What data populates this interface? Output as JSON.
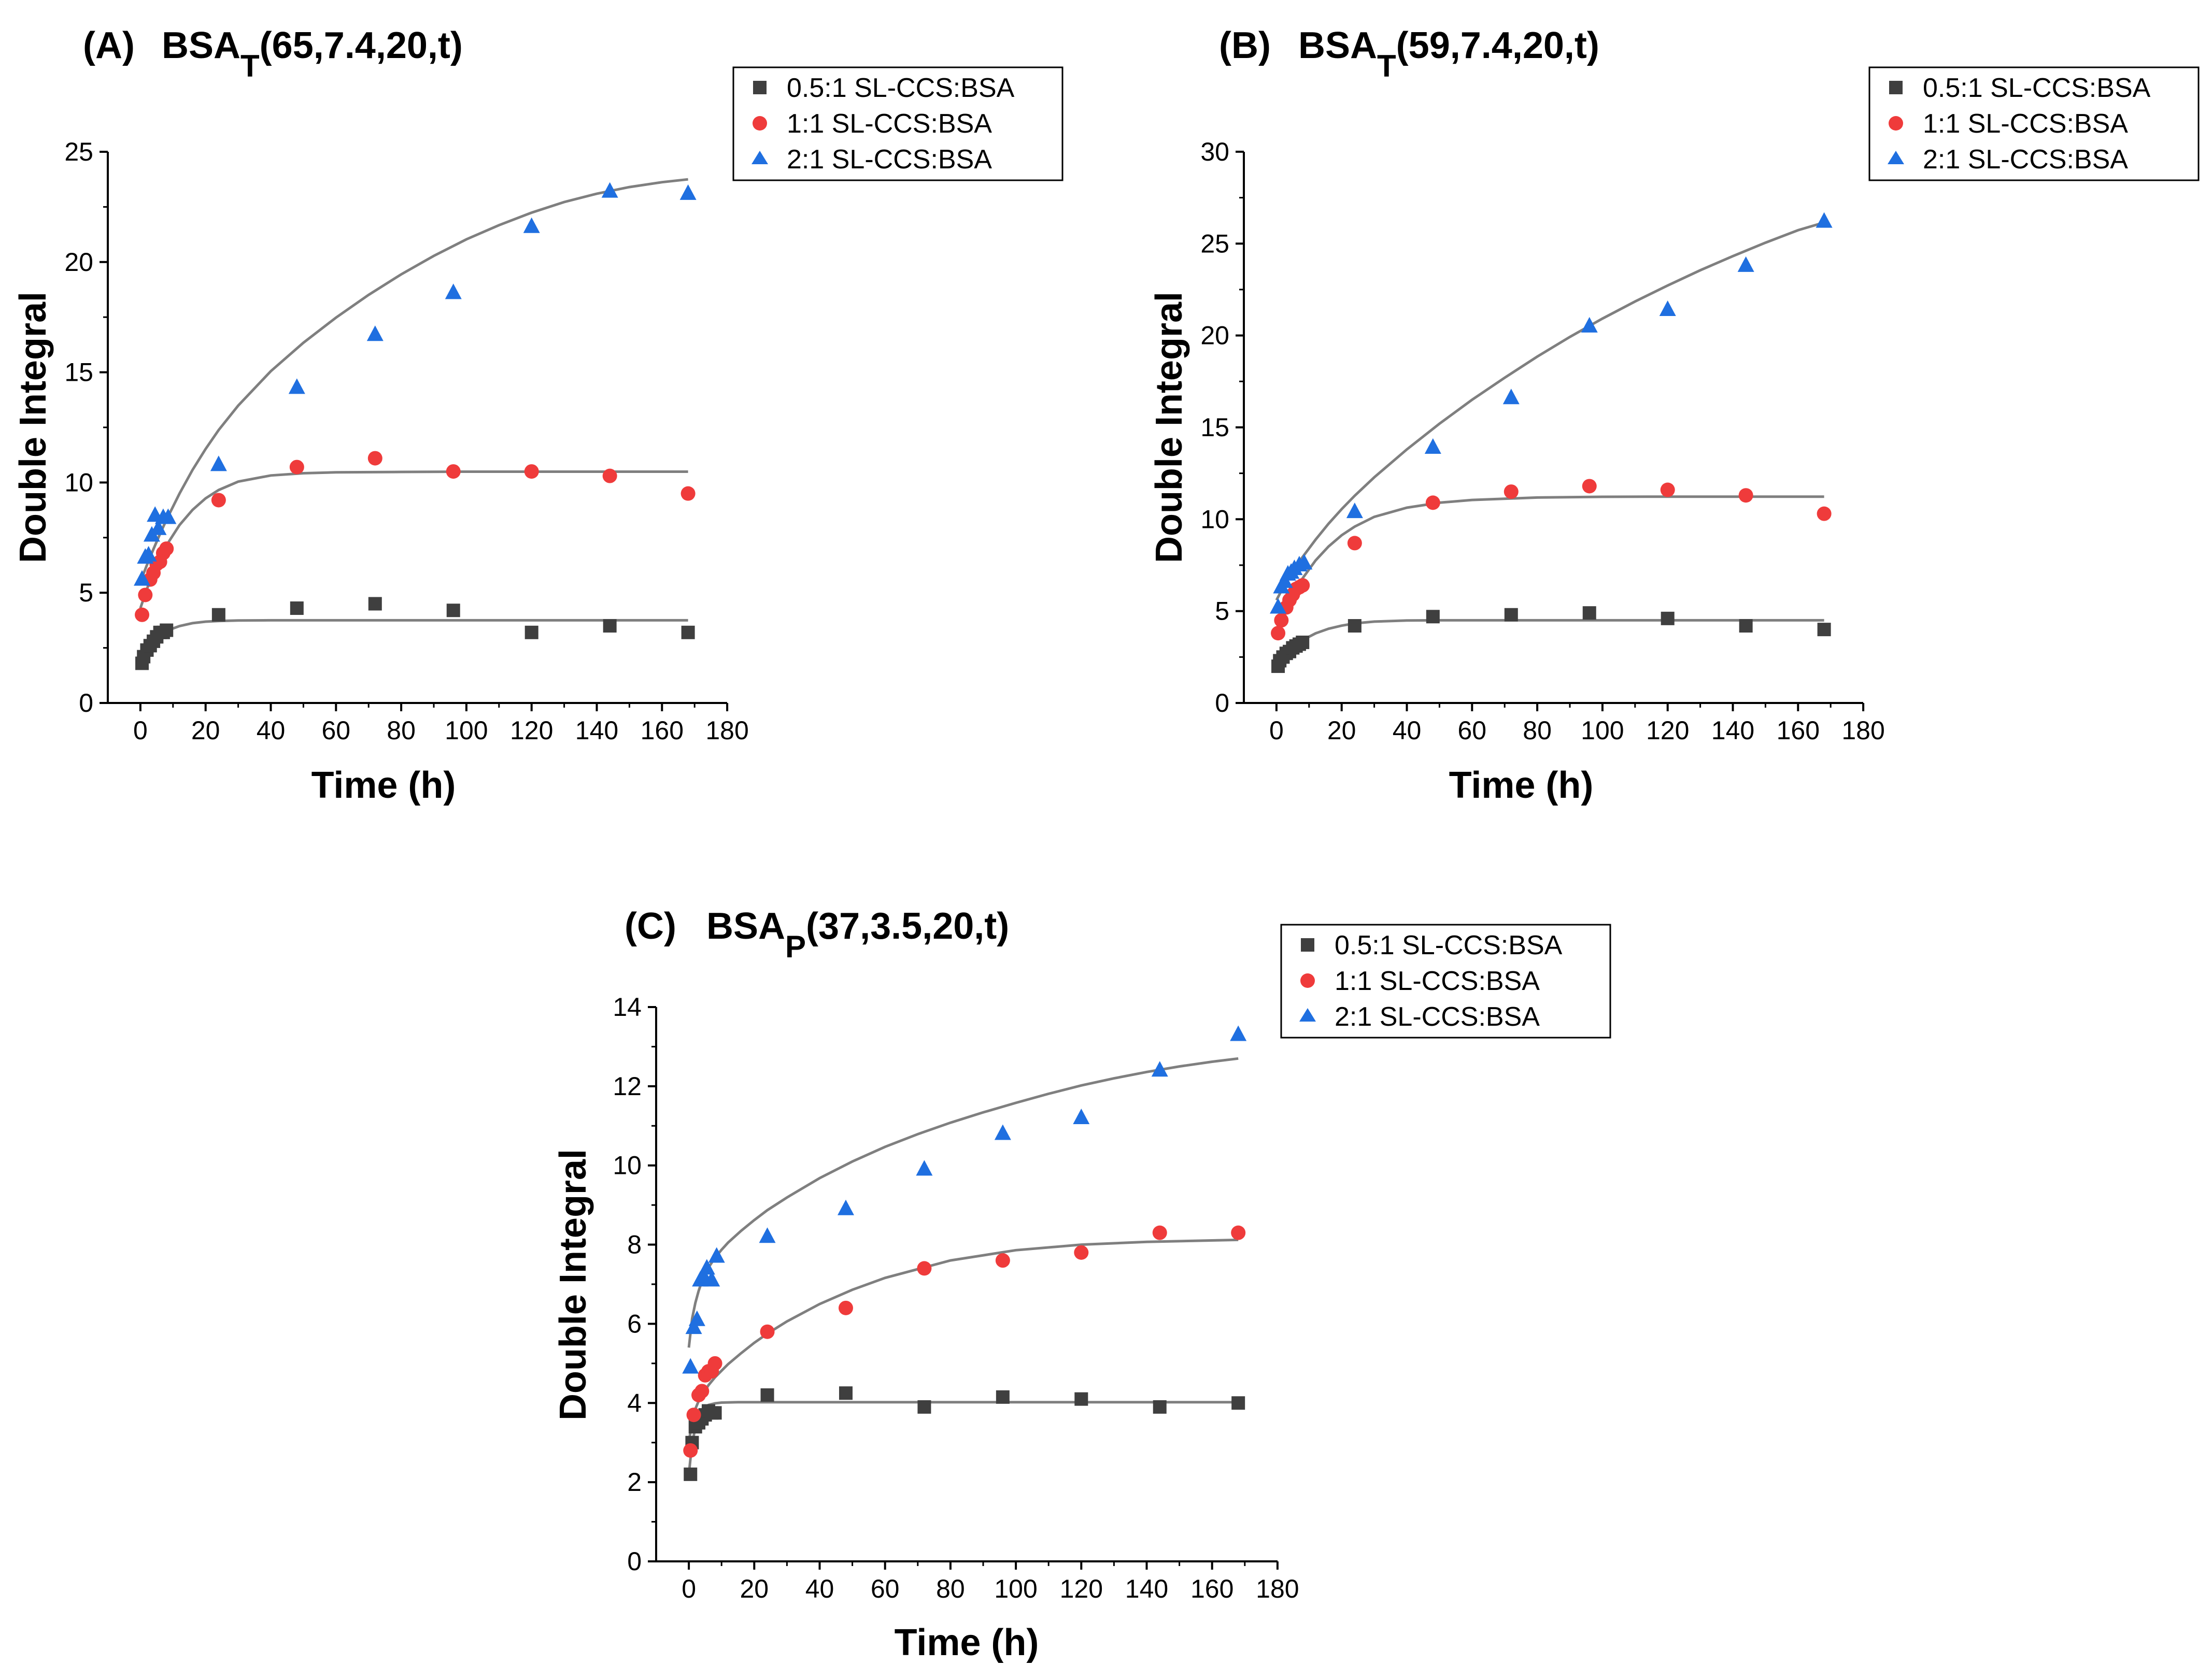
{
  "chart_data": [
    {
      "type": "scatter",
      "panel_label": "(A)",
      "title_main": "BSA",
      "title_sub": "T",
      "title_rest": "(65,7.4,20,t)",
      "xlabel": "Time (h)",
      "ylabel": "Double Integral",
      "xlim": [
        -10,
        180
      ],
      "ylim": [
        0,
        25
      ],
      "xticks": [
        0,
        20,
        40,
        60,
        80,
        100,
        120,
        140,
        160,
        180
      ],
      "yticks": [
        0,
        5,
        10,
        15,
        20,
        25
      ],
      "grid": false,
      "legend_position": "top-right",
      "series": [
        {
          "name": "0.5:1 SL-CCS:BSA",
          "marker": "square",
          "color": "#3f3f3f",
          "x": [
            0.5,
            1,
            2,
            3,
            4,
            5,
            6,
            7,
            8,
            24,
            48,
            72,
            96,
            120,
            144,
            168
          ],
          "y": [
            1.8,
            2.1,
            2.4,
            2.6,
            2.8,
            3.0,
            3.2,
            3.2,
            3.3,
            4.0,
            4.3,
            4.5,
            4.2,
            3.2,
            3.5,
            3.2
          ],
          "fit_x": [
            0,
            1,
            2,
            3,
            4,
            6,
            8,
            10,
            12,
            16,
            20,
            24,
            30,
            40,
            60,
            80,
            100,
            120,
            140,
            168
          ],
          "fit_y": [
            1.85,
            2.12,
            2.36,
            2.57,
            2.75,
            3.03,
            3.23,
            3.38,
            3.49,
            3.62,
            3.69,
            3.72,
            3.74,
            3.75,
            3.75,
            3.75,
            3.75,
            3.75,
            3.75,
            3.75
          ]
        },
        {
          "name": "1:1 SL-CCS:BSA",
          "marker": "circle",
          "color": "#ef3b3b",
          "x": [
            0.5,
            1.5,
            3,
            4,
            5,
            6,
            7,
            8,
            24,
            48,
            72,
            96,
            120,
            144,
            168
          ],
          "y": [
            4.0,
            4.9,
            5.6,
            5.9,
            6.3,
            6.4,
            6.8,
            7.0,
            9.2,
            10.7,
            11.1,
            10.5,
            10.5,
            10.3,
            9.5
          ],
          "fit_x": [
            0,
            2,
            4,
            6,
            8,
            12,
            16,
            20,
            24,
            30,
            40,
            50,
            60,
            80,
            100,
            120,
            140,
            168
          ],
          "fit_y": [
            4.3,
            5.17,
            5.93,
            6.58,
            7.15,
            8.07,
            8.76,
            9.28,
            9.66,
            10.04,
            10.32,
            10.42,
            10.46,
            10.48,
            10.49,
            10.49,
            10.49,
            10.49
          ]
        },
        {
          "name": "2:1 SL-CCS:BSA",
          "marker": "triangle",
          "color": "#1f6fe0",
          "x": [
            0.5,
            1.5,
            2.5,
            3.5,
            4.5,
            5.5,
            7,
            8.5,
            24,
            48,
            72,
            96,
            120,
            144,
            168
          ],
          "y": [
            5.6,
            6.6,
            6.7,
            7.6,
            8.5,
            7.9,
            8.4,
            8.4,
            10.8,
            14.3,
            16.7,
            18.6,
            21.6,
            23.2,
            23.1
          ],
          "fit_x": [
            0,
            2,
            4,
            6,
            8,
            12,
            16,
            20,
            24,
            30,
            40,
            50,
            60,
            70,
            80,
            90,
            100,
            110,
            120,
            130,
            140,
            150,
            160,
            168
          ],
          "fit_y": [
            5.5,
            6.26,
            6.98,
            7.66,
            8.31,
            9.5,
            10.57,
            11.52,
            12.38,
            13.49,
            15.05,
            16.34,
            17.48,
            18.51,
            19.44,
            20.28,
            21.03,
            21.67,
            22.24,
            22.72,
            23.1,
            23.4,
            23.62,
            23.75
          ]
        }
      ]
    },
    {
      "type": "scatter",
      "panel_label": "(B)",
      "title_main": "BSA",
      "title_sub": "T",
      "title_rest": "(59,7.4,20,t)",
      "xlabel": "Time (h)",
      "ylabel": "Double Integral",
      "xlim": [
        -10,
        180
      ],
      "ylim": [
        0,
        30
      ],
      "xticks": [
        0,
        20,
        40,
        60,
        80,
        100,
        120,
        140,
        160,
        180
      ],
      "yticks": [
        0,
        5,
        10,
        15,
        20,
        25,
        30
      ],
      "grid": false,
      "legend_position": "top-right",
      "series": [
        {
          "name": "0.5:1 SL-CCS:BSA",
          "marker": "square",
          "color": "#3f3f3f",
          "x": [
            0.5,
            1,
            2,
            3,
            4,
            5,
            6,
            7,
            8,
            24,
            48,
            72,
            96,
            120,
            144,
            168
          ],
          "y": [
            2.0,
            2.3,
            2.5,
            2.7,
            2.8,
            3.0,
            3.1,
            3.2,
            3.3,
            4.2,
            4.7,
            4.8,
            4.9,
            4.6,
            4.2,
            4.0
          ],
          "fit_x": [
            0,
            2,
            4,
            6,
            8,
            12,
            16,
            20,
            24,
            30,
            40,
            50,
            60,
            80,
            100,
            120,
            140,
            168
          ],
          "fit_y": [
            2.05,
            2.5,
            2.87,
            3.17,
            3.42,
            3.79,
            4.04,
            4.21,
            4.33,
            4.43,
            4.49,
            4.5,
            4.5,
            4.5,
            4.5,
            4.5,
            4.5,
            4.5
          ]
        },
        {
          "name": "1:1 SL-CCS:BSA",
          "marker": "circle",
          "color": "#ef3b3b",
          "x": [
            0.5,
            1.5,
            3,
            4,
            5,
            6,
            7,
            8,
            24,
            48,
            72,
            96,
            120,
            144,
            168
          ],
          "y": [
            3.8,
            4.5,
            5.2,
            5.6,
            5.9,
            6.2,
            6.3,
            6.4,
            8.7,
            10.9,
            11.5,
            11.8,
            11.6,
            11.3,
            10.3
          ],
          "fit_x": [
            0,
            2,
            4,
            6,
            8,
            12,
            16,
            20,
            24,
            30,
            40,
            50,
            60,
            80,
            100,
            120,
            140,
            168
          ],
          "fit_y": [
            4.0,
            4.82,
            5.55,
            6.2,
            6.78,
            7.76,
            8.52,
            9.13,
            9.6,
            10.13,
            10.63,
            10.9,
            11.05,
            11.18,
            11.22,
            11.23,
            11.23,
            11.23
          ]
        },
        {
          "name": "2:1 SL-CCS:BSA",
          "marker": "triangle",
          "color": "#1f6fe0",
          "x": [
            0.5,
            1.5,
            2.5,
            3.5,
            4.5,
            5.5,
            7,
            8.5,
            24,
            48,
            72,
            96,
            120,
            144,
            168
          ],
          "y": [
            5.2,
            6.3,
            6.6,
            7.0,
            7.1,
            7.3,
            7.5,
            7.6,
            10.4,
            13.9,
            16.6,
            20.5,
            21.4,
            23.8,
            26.2
          ],
          "fit_x": [
            0,
            2,
            4,
            6,
            8,
            12,
            16,
            20,
            24,
            30,
            40,
            50,
            60,
            70,
            80,
            90,
            100,
            110,
            120,
            130,
            140,
            150,
            160,
            168
          ],
          "fit_y": [
            5.6,
            6.27,
            6.87,
            7.42,
            7.94,
            8.89,
            9.76,
            10.55,
            11.28,
            12.28,
            13.8,
            15.2,
            16.5,
            17.7,
            18.85,
            19.92,
            20.92,
            21.85,
            22.72,
            23.55,
            24.32,
            25.05,
            25.73,
            26.15
          ]
        }
      ]
    },
    {
      "type": "scatter",
      "panel_label": "(C)",
      "title_main": "BSA",
      "title_sub": "P",
      "title_rest": "(37,3.5,20,t)",
      "xlabel": "Time (h)",
      "ylabel": "Double Integral",
      "xlim": [
        -10,
        180
      ],
      "ylim": [
        0,
        14
      ],
      "xticks": [
        0,
        20,
        40,
        60,
        80,
        100,
        120,
        140,
        160,
        180
      ],
      "yticks": [
        0,
        2,
        4,
        6,
        8,
        10,
        12,
        14
      ],
      "grid": false,
      "legend_position": "top-right",
      "series": [
        {
          "name": "0.5:1 SL-CCS:BSA",
          "marker": "square",
          "color": "#3f3f3f",
          "x": [
            0.5,
            1,
            2,
            3,
            4,
            5,
            6,
            7,
            8,
            24,
            48,
            72,
            96,
            120,
            144,
            168
          ],
          "y": [
            2.2,
            3.0,
            3.4,
            3.5,
            3.6,
            3.7,
            3.8,
            3.75,
            3.75,
            4.2,
            4.25,
            3.9,
            4.15,
            4.1,
            3.9,
            4.0
          ],
          "fit_x": [
            0,
            0.5,
            1,
            1.5,
            2,
            3,
            4,
            5,
            6,
            8,
            10,
            15,
            20,
            30,
            60,
            100,
            140,
            168
          ],
          "fit_y": [
            2.2,
            2.6,
            2.92,
            3.18,
            3.38,
            3.65,
            3.81,
            3.9,
            3.95,
            3.99,
            4.01,
            4.02,
            4.02,
            4.02,
            4.02,
            4.02,
            4.02,
            4.02
          ]
        },
        {
          "name": "1:1 SL-CCS:BSA",
          "marker": "circle",
          "color": "#ef3b3b",
          "x": [
            0.5,
            1.5,
            3,
            4,
            5,
            6,
            7,
            8,
            24,
            48,
            72,
            96,
            120,
            144,
            168
          ],
          "y": [
            2.8,
            3.7,
            4.2,
            4.3,
            4.7,
            4.8,
            4.8,
            5.0,
            5.8,
            6.4,
            7.4,
            7.6,
            7.8,
            8.3,
            8.3
          ],
          "fit_x": [
            0,
            1,
            2,
            3,
            4,
            6,
            8,
            12,
            16,
            20,
            24,
            30,
            40,
            50,
            60,
            80,
            100,
            120,
            140,
            168
          ],
          "fit_y": [
            3.0,
            3.55,
            3.85,
            4.05,
            4.2,
            4.45,
            4.65,
            4.98,
            5.26,
            5.52,
            5.75,
            6.06,
            6.5,
            6.86,
            7.16,
            7.6,
            7.86,
            8.0,
            8.07,
            8.12
          ]
        },
        {
          "name": "2:1 SL-CCS:BSA",
          "marker": "triangle",
          "color": "#1f6fe0",
          "x": [
            0.5,
            1.5,
            2.5,
            3.5,
            4.5,
            5.5,
            7,
            8.5,
            24,
            48,
            72,
            96,
            120,
            144,
            168
          ],
          "y": [
            4.9,
            5.9,
            6.1,
            7.1,
            7.2,
            7.4,
            7.1,
            7.7,
            8.2,
            8.9,
            9.9,
            10.8,
            11.2,
            12.4,
            13.3
          ],
          "fit_x": [
            0,
            1,
            2,
            3,
            4,
            6,
            8,
            10,
            12,
            16,
            20,
            24,
            30,
            40,
            50,
            60,
            70,
            80,
            90,
            100,
            110,
            120,
            130,
            140,
            150,
            160,
            168
          ],
          "fit_y": [
            5.4,
            6.13,
            6.53,
            6.83,
            7.07,
            7.42,
            7.67,
            7.87,
            8.05,
            8.35,
            8.62,
            8.87,
            9.19,
            9.68,
            10.1,
            10.47,
            10.79,
            11.08,
            11.34,
            11.58,
            11.81,
            12.02,
            12.2,
            12.36,
            12.5,
            12.62,
            12.7
          ]
        }
      ]
    }
  ]
}
